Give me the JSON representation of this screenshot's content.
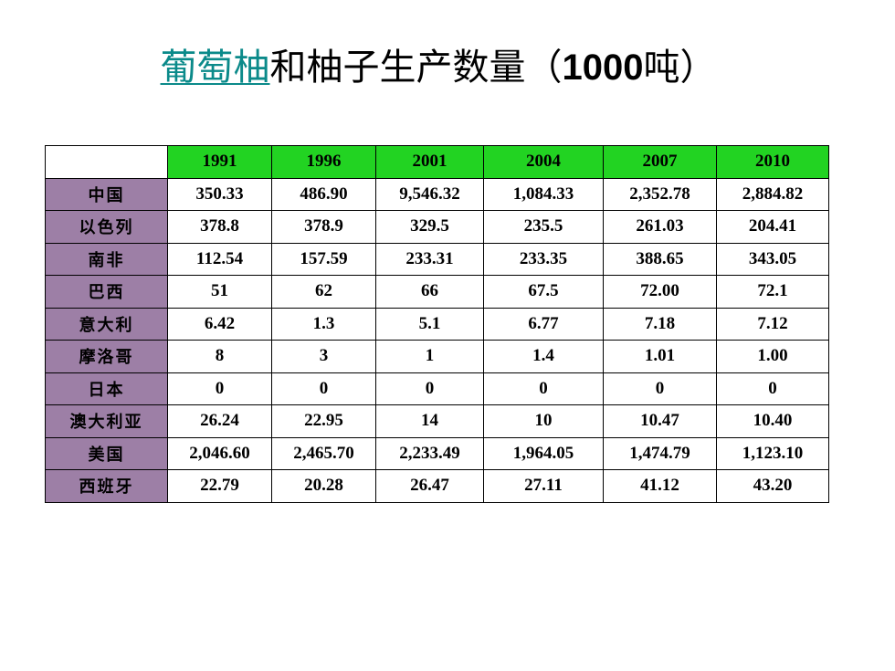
{
  "title": {
    "link_text": "葡萄柚",
    "middle_text": "和柚子生产数量（",
    "number": "1000",
    "unit": "吨）"
  },
  "table": {
    "years": [
      "1991",
      "1996",
      "2001",
      "2004",
      "2007",
      "2010"
    ],
    "rows": [
      {
        "country": "中国",
        "values": [
          "350.33",
          "486.90",
          "9,546.32",
          "1,084.33",
          "2,352.78",
          "2,884.82"
        ]
      },
      {
        "country": "以色列",
        "values": [
          "378.8",
          "378.9",
          "329.5",
          "235.5",
          "261.03",
          "204.41"
        ]
      },
      {
        "country": "南非",
        "values": [
          "112.54",
          "157.59",
          "233.31",
          "233.35",
          "388.65",
          "343.05"
        ]
      },
      {
        "country": "巴西",
        "values": [
          "51",
          "62",
          "66",
          "67.5",
          "72.00",
          "72.1"
        ]
      },
      {
        "country": "意大利",
        "values": [
          "6.42",
          "1.3",
          "5.1",
          "6.77",
          "7.18",
          "7.12"
        ]
      },
      {
        "country": "摩洛哥",
        "values": [
          "8",
          "3",
          "1",
          "1.4",
          "1.01",
          "1.00"
        ]
      },
      {
        "country": "日本",
        "values": [
          "0",
          "0",
          "0",
          "0",
          "0",
          "0"
        ]
      },
      {
        "country": "澳大利亚",
        "values": [
          "26.24",
          "22.95",
          "14",
          "10",
          "10.47",
          "10.40"
        ]
      },
      {
        "country": "美国",
        "values": [
          "2,046.60",
          "2,465.70",
          "2,233.49",
          "1,964.05",
          "1,474.79",
          "1,123.10"
        ]
      },
      {
        "country": "西班牙",
        "values": [
          "22.79",
          "20.28",
          "26.47",
          "27.11",
          "41.12",
          "43.20"
        ]
      }
    ]
  },
  "colors": {
    "header_background": "#22d322",
    "country_background": "#9d7fa6",
    "link_color": "#0b8a8a"
  }
}
